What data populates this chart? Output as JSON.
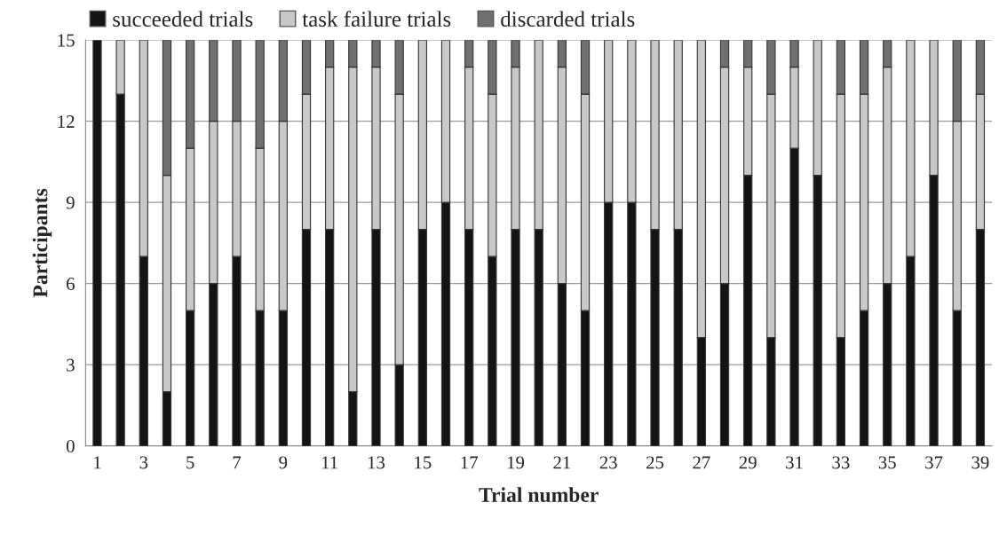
{
  "chart_data": {
    "type": "bar",
    "stacked": true,
    "xlabel": "Trial number",
    "ylabel": "Participants",
    "categories": [
      "1",
      null,
      "3",
      null,
      "5",
      null,
      "7",
      null,
      "9",
      null,
      "11",
      null,
      "13",
      null,
      "15",
      null,
      "17",
      null,
      "19",
      null,
      "21",
      null,
      "23",
      null,
      "25",
      null,
      "27",
      null,
      "29",
      null,
      "31",
      null,
      "33",
      null,
      "35",
      null,
      "37",
      null,
      "39"
    ],
    "series": [
      {
        "name": "succeeded trials",
        "color": "#141414",
        "values": [
          15,
          13,
          7,
          2,
          5,
          6,
          7,
          5,
          5,
          8,
          8,
          2,
          8,
          3,
          8,
          9,
          8,
          7,
          8,
          8,
          6,
          5,
          9,
          9,
          8,
          8,
          4,
          6,
          10,
          4,
          11,
          10,
          4,
          5,
          6,
          7,
          10,
          5,
          8
        ]
      },
      {
        "name": "task failure trials",
        "color": "#c8c8c8",
        "values": [
          0,
          2,
          8,
          8,
          6,
          6,
          5,
          6,
          7,
          5,
          6,
          12,
          6,
          10,
          7,
          6,
          6,
          6,
          6,
          7,
          8,
          8,
          6,
          6,
          7,
          7,
          11,
          8,
          4,
          9,
          3,
          5,
          9,
          8,
          8,
          8,
          5,
          7,
          5
        ]
      },
      {
        "name": "discarded trials",
        "color": "#707070",
        "values": [
          0,
          0,
          0,
          5,
          4,
          3,
          3,
          4,
          3,
          2,
          1,
          1,
          1,
          2,
          0,
          0,
          1,
          2,
          1,
          0,
          1,
          2,
          0,
          0,
          0,
          0,
          0,
          1,
          1,
          2,
          1,
          0,
          2,
          2,
          1,
          0,
          0,
          3,
          2
        ]
      }
    ],
    "ylim": [
      0,
      15
    ],
    "yticks": [
      0,
      3,
      6,
      9,
      12,
      15
    ],
    "grid": "y",
    "legend": "top"
  }
}
